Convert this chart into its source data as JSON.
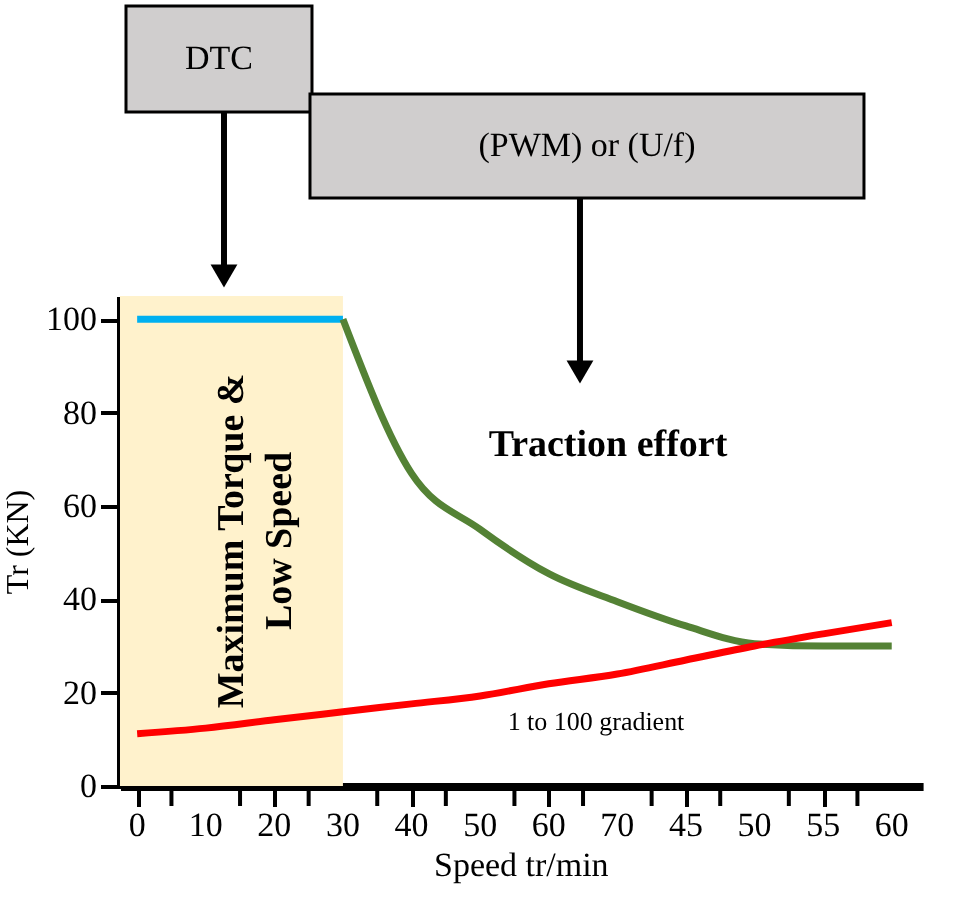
{
  "chart_data": {
    "type": "line",
    "xlabel": "Speed tr/min",
    "ylabel": "Tr (KN)",
    "categories": [
      "0",
      "10",
      "20",
      "30",
      "40",
      "50",
      "60",
      "70",
      "45",
      "50",
      "55",
      "60"
    ],
    "series": [
      {
        "color": "#00b0f0",
        "values": [
          100,
          100,
          100,
          100,
          null,
          null,
          null,
          null,
          null,
          null,
          null,
          null
        ]
      },
      {
        "color": "#548235",
        "values": [
          null,
          null,
          null,
          100,
          67,
          55,
          45.5,
          39.5,
          34.3,
          30.5,
          30,
          30
        ]
      },
      {
        "color": "#ff0000",
        "values": [
          11.2,
          12.4,
          14.2,
          15.9,
          17.6,
          19.3,
          21.9,
          24,
          27,
          30,
          32.6,
          35
        ]
      }
    ],
    "ylim": [
      0,
      105
    ],
    "yticks": [
      0,
      20,
      40,
      60,
      80,
      100
    ],
    "bands": [
      {
        "axis": "x",
        "from": "0",
        "to": "30",
        "label": "Maximum Torque &\nLow Speed",
        "color": "#fff2cc"
      }
    ],
    "annotations": [
      "DTC",
      "(PWM) or (U/f)",
      "Traction effort",
      "1 to 100 gradient"
    ],
    "grid": false,
    "marker": "none",
    "line_style": "solid"
  }
}
